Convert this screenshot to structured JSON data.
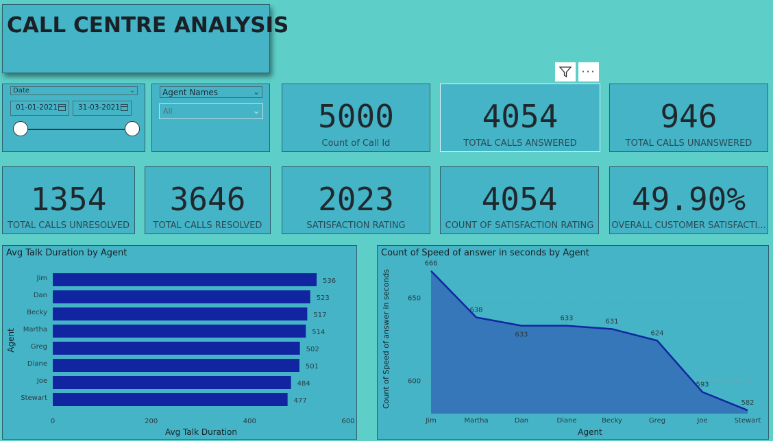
{
  "title": "CALL CENTRE ANALYSIS",
  "date_slicer": {
    "label": "Date",
    "start": "01-01-2021",
    "end": "31-03-2021"
  },
  "agent_slicer": {
    "label": "Agent Names",
    "value": "All"
  },
  "cards_top": [
    {
      "value": "5000",
      "label": "Count of Call Id"
    },
    {
      "value": "4054",
      "label": "TOTAL CALLS ANSWERED"
    },
    {
      "value": "946",
      "label": "TOTAL CALLS UNANSWERED"
    }
  ],
  "cards_row2": [
    {
      "value": "1354",
      "label": "TOTAL CALLS UNRESOLVED"
    },
    {
      "value": "3646",
      "label": "TOTAL CALLS RESOLVED"
    },
    {
      "value": "2023",
      "label": "SATISFACTION RATING"
    },
    {
      "value": "4054",
      "label": "COUNT OF SATISFACTION RATING"
    },
    {
      "value": "49.90%",
      "label": "OVERALL CUSTOMER SATISFACTI..."
    }
  ],
  "colors": {
    "bar": "#1125a0",
    "area_fill": "#3577b8",
    "line": "#1125a0",
    "background": "#5dcfc8",
    "panel": "#44b4c6"
  },
  "chart_data": [
    {
      "type": "bar",
      "orientation": "horizontal",
      "title": "Avg Talk Duration by Agent",
      "xlabel": "Avg Talk Duration",
      "ylabel": "Agent",
      "categories": [
        "Jim",
        "Dan",
        "Becky",
        "Martha",
        "Greg",
        "Diane",
        "Joe",
        "Stewart"
      ],
      "values": [
        536,
        523,
        517,
        514,
        502,
        501,
        484,
        477
      ],
      "xlim": [
        0,
        600
      ],
      "xticks": [
        0,
        200,
        400,
        600
      ],
      "data_labels": true
    },
    {
      "type": "area",
      "title": "Count of Speed of answer in seconds by Agent",
      "xlabel": "Agent",
      "ylabel": "Count of Speed of answer in seconds",
      "categories": [
        "Jim",
        "Martha",
        "Dan",
        "Diane",
        "Becky",
        "Greg",
        "Joe",
        "Stewart"
      ],
      "values": [
        666,
        638,
        633,
        633,
        631,
        624,
        593,
        582
      ],
      "ylim": [
        580,
        670
      ],
      "yticks": [
        600,
        650
      ],
      "grid": true,
      "data_labels": true
    }
  ]
}
